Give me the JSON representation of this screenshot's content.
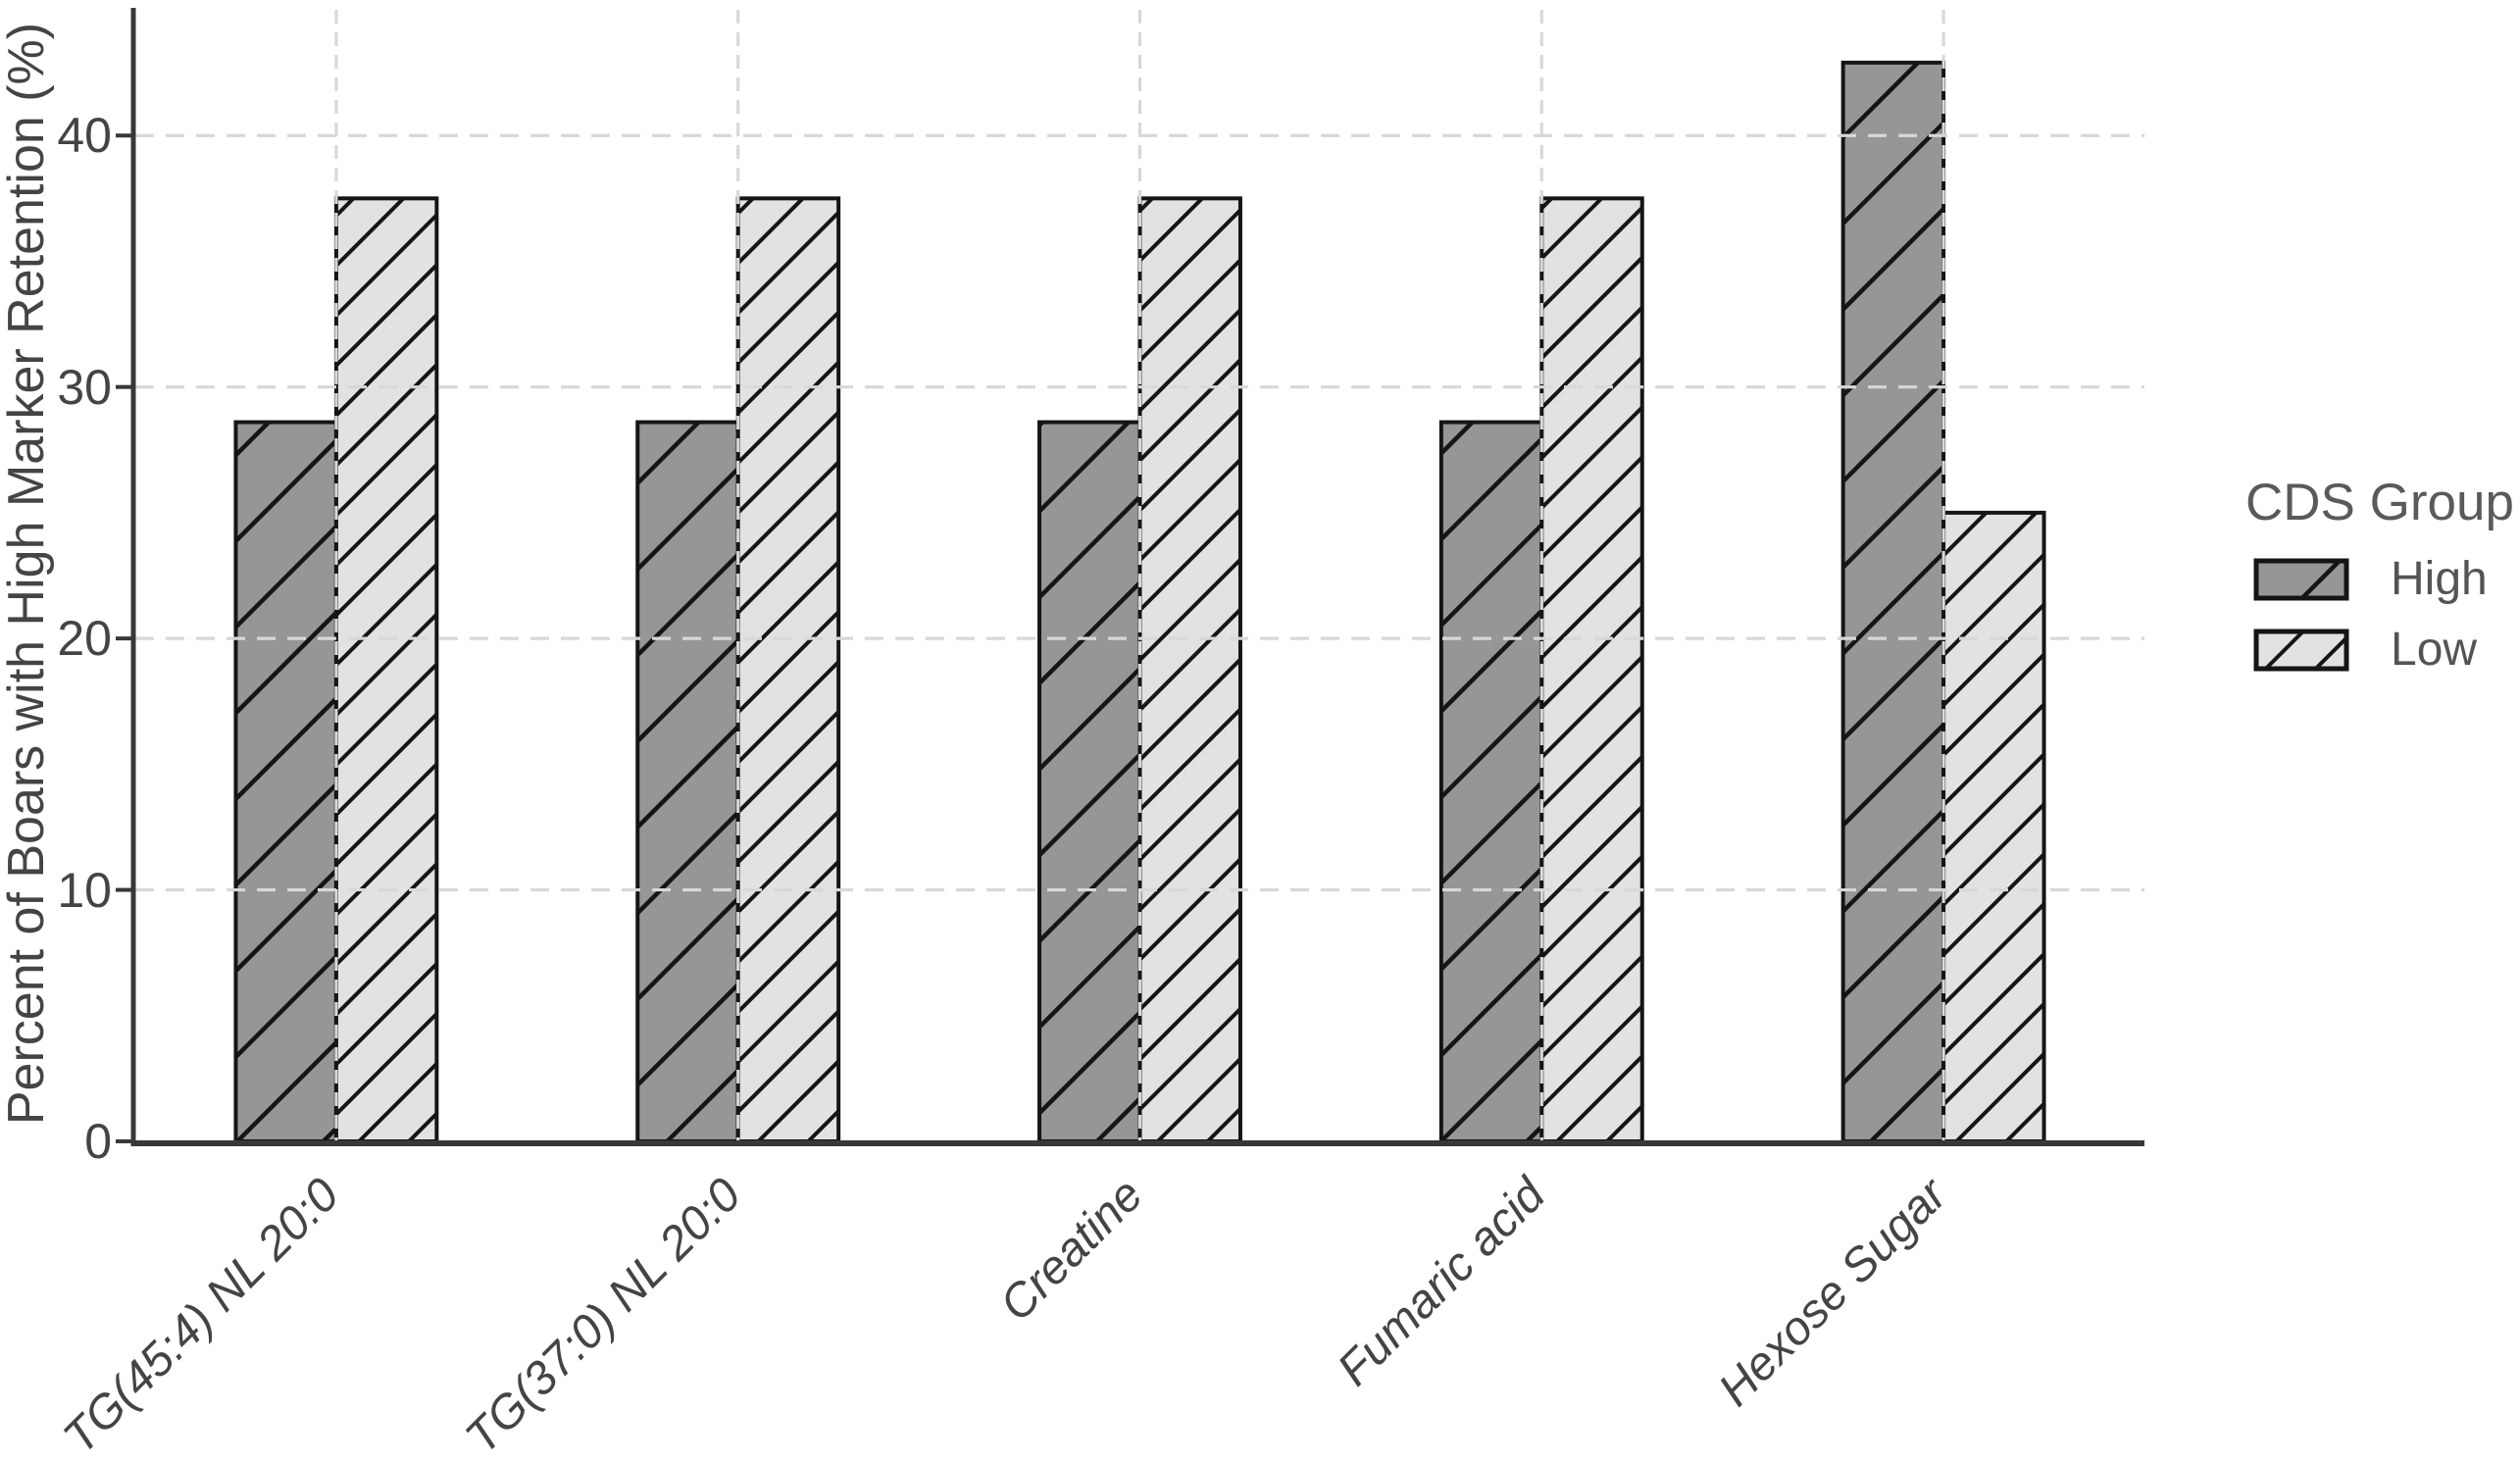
{
  "chart_data": {
    "type": "bar",
    "title": "",
    "categories": [
      "TG(45:4) NL 20:0",
      "TG(37:0) NL 20:0",
      "Creatine",
      "Fumaric acid",
      "Hexose Sugar"
    ],
    "series": [
      {
        "name": "High",
        "values": [
          28.6,
          28.6,
          28.6,
          28.6,
          42.9
        ],
        "fill": "#969696",
        "hatch": "/",
        "hatch_spacing": 62
      },
      {
        "name": "Low",
        "values": [
          37.5,
          37.5,
          37.5,
          37.5,
          25.0
        ],
        "fill": "#e2e2e2",
        "hatch": "/",
        "hatch_spacing": 36
      }
    ],
    "xlabel": "",
    "ylabel": "Percent of Boars with High Marker Retention (%)",
    "ylim": [
      0,
      45
    ],
    "yticks": [
      0,
      10,
      20,
      30,
      40
    ],
    "grid": true,
    "grid_style": "dashed",
    "legend_position": "right",
    "legend": {
      "title": "CDS Group",
      "items": [
        "High",
        "Low"
      ]
    },
    "colors": {
      "bar_edge": "#151515",
      "hatch_line": "#151515",
      "grid": "#d8d8d8",
      "axis": "#383838",
      "tick_text": "#444444",
      "legend_text": "#545454"
    }
  }
}
